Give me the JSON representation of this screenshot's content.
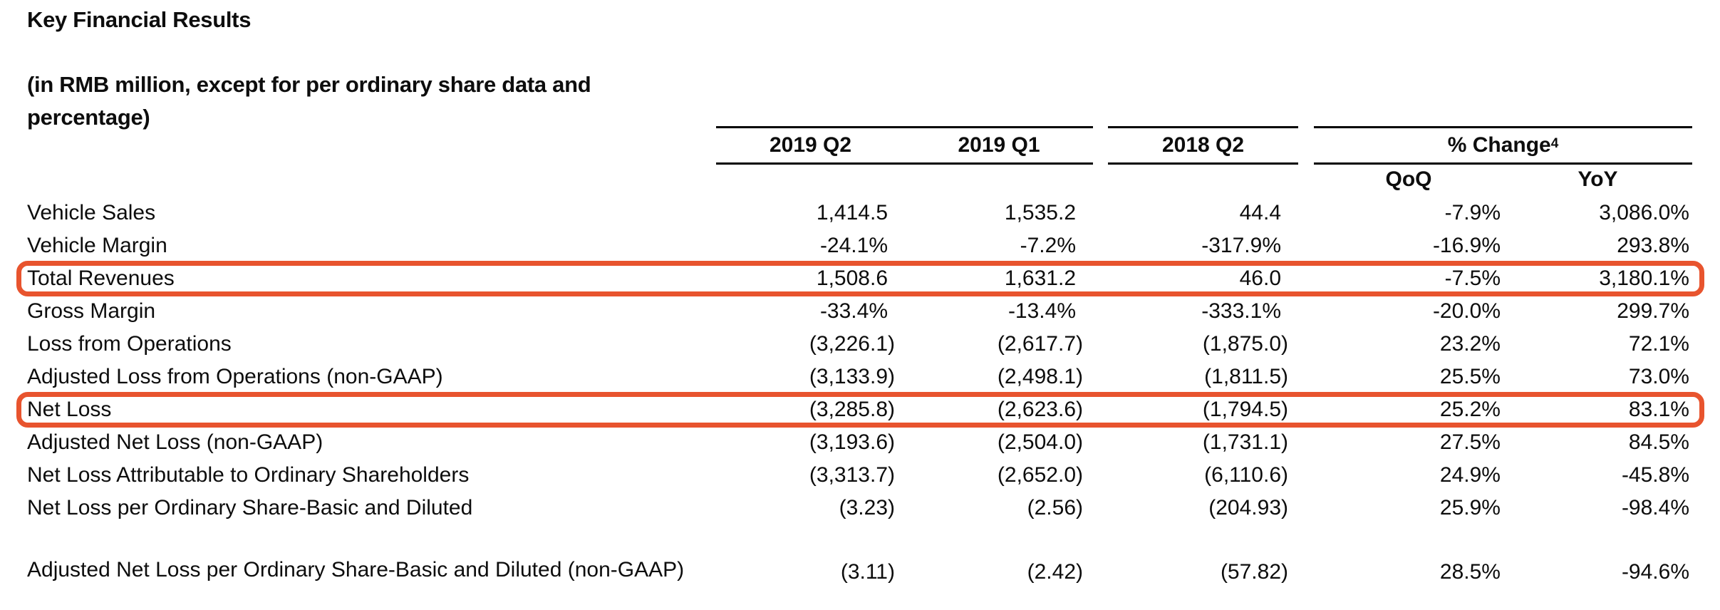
{
  "title": "Key Financial Results",
  "subtitle": "(in RMB million, except for per ordinary share data and percentage)",
  "table": {
    "highlight_color": "#E8542E",
    "column_headers": {
      "col1": "2019 Q2",
      "col2": "2019 Q1",
      "col3": "2018 Q2"
    },
    "change_header": {
      "label": "% Change",
      "superscript": "4"
    },
    "change_subheaders": {
      "qoq": "QoQ",
      "yoy": "YoY"
    },
    "rows": [
      {
        "label": "Vehicle Sales",
        "q2_2019": "1,414.5",
        "q1_2019": "1,535.2",
        "q2_2018": "44.4",
        "qoq": "-7.9%",
        "yoy": "3,086.0%",
        "highlighted": false
      },
      {
        "label": "Vehicle Margin",
        "q2_2019": "-24.1%",
        "q1_2019": "-7.2%",
        "q2_2018": "-317.9%",
        "qoq": "-16.9%",
        "yoy": "293.8%",
        "highlighted": false
      },
      {
        "label": "Total Revenues",
        "q2_2019": "1,508.6",
        "q1_2019": "1,631.2",
        "q2_2018": "46.0",
        "qoq": "-7.5%",
        "yoy": "3,180.1%",
        "highlighted": true
      },
      {
        "label": "Gross Margin",
        "q2_2019": "-33.4%",
        "q1_2019": "-13.4%",
        "q2_2018": "-333.1%",
        "qoq": "-20.0%",
        "yoy": "299.7%",
        "highlighted": false
      },
      {
        "label": "Loss from Operations",
        "q2_2019": "(3,226.1)",
        "q1_2019": "(2,617.7)",
        "q2_2018": "(1,875.0)",
        "qoq": "23.2%",
        "yoy": "72.1%",
        "highlighted": false
      },
      {
        "label": "Adjusted Loss from Operations (non-GAAP)",
        "q2_2019": "(3,133.9)",
        "q1_2019": "(2,498.1)",
        "q2_2018": "(1,811.5)",
        "qoq": "25.5%",
        "yoy": "73.0%",
        "highlighted": false
      },
      {
        "label": "Net Loss",
        "q2_2019": "(3,285.8)",
        "q1_2019": "(2,623.6)",
        "q2_2018": "(1,794.5)",
        "qoq": "25.2%",
        "yoy": "83.1%",
        "highlighted": true
      },
      {
        "label": "Adjusted Net Loss (non-GAAP)",
        "q2_2019": "(3,193.6)",
        "q1_2019": "(2,504.0)",
        "q2_2018": "(1,731.1)",
        "qoq": "27.5%",
        "yoy": "84.5%",
        "highlighted": false
      },
      {
        "label": "Net Loss Attributable to Ordinary Shareholders",
        "q2_2019": "(3,313.7)",
        "q1_2019": "(2,652.0)",
        "q2_2018": "(6,110.6)",
        "qoq": "24.9%",
        "yoy": "-45.8%",
        "highlighted": false
      },
      {
        "label": "Net Loss per Ordinary Share-Basic and Diluted",
        "q2_2019": "(3.23)",
        "q1_2019": "(2.56)",
        "q2_2018": "(204.93)",
        "qoq": "25.9%",
        "yoy": "-98.4%",
        "highlighted": false
      },
      {
        "label": "Adjusted Net Loss per Ordinary Share-Basic and Diluted (non-GAAP)",
        "q2_2019": "(3.11)",
        "q1_2019": "(2.42)",
        "q2_2018": "(57.82)",
        "qoq": "28.5%",
        "yoy": "-94.6%",
        "highlighted": false
      }
    ]
  }
}
